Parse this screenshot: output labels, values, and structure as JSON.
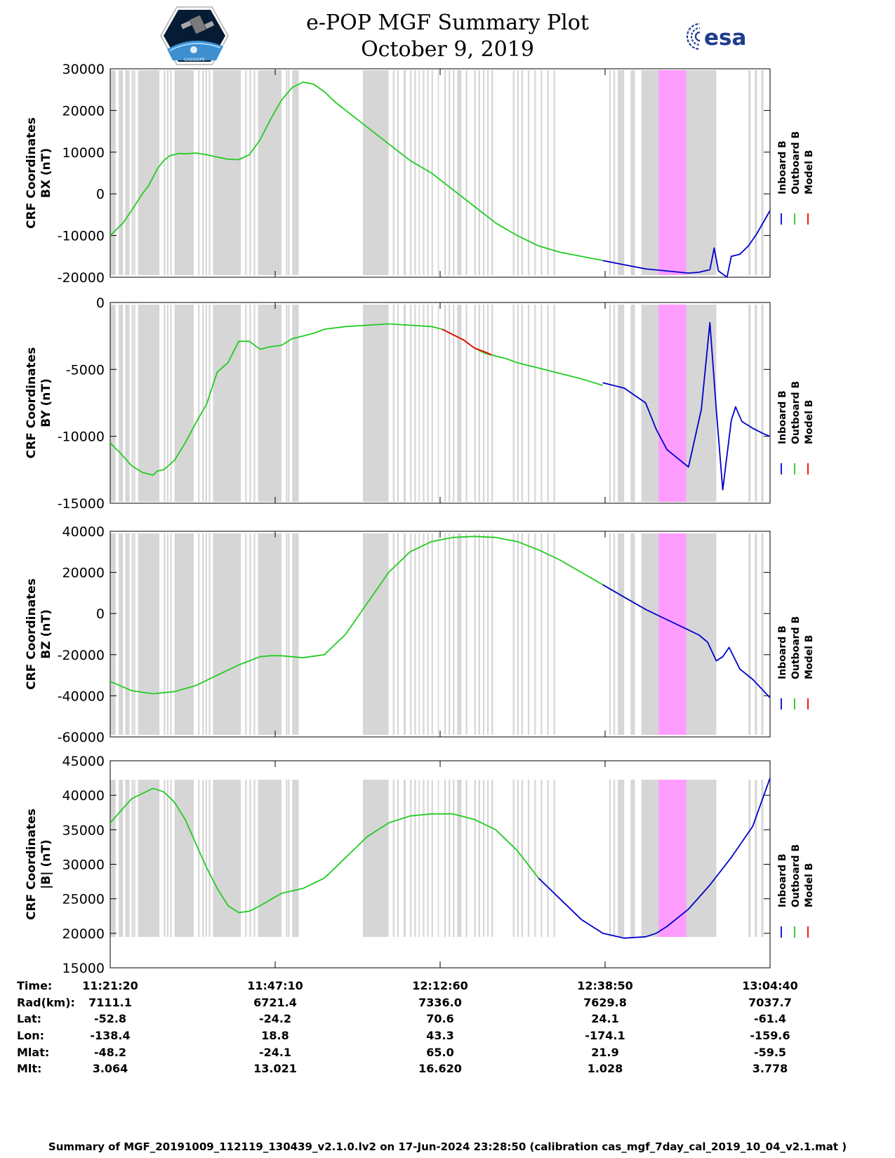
{
  "header": {
    "title": "e-POP MGF Summary Plot",
    "date": "October 9, 2019",
    "esa_text": "esa",
    "cassiope_text": "CASSIOPE"
  },
  "colors": {
    "inboard": "#0000cc",
    "outboard": "#22cc22",
    "model": "#ee0000",
    "shade_gray": "#d6d6d6",
    "shade_magenta": "#ff9cff",
    "esa_blue": "#1f3c8c"
  },
  "chart_data": [
    {
      "type": "line",
      "id": "bx",
      "ylabel": [
        "CRF Coordinates",
        "BX (nT)"
      ],
      "ylim": [
        -20000,
        30000
      ],
      "yticks": [
        -20000,
        -10000,
        0,
        10000,
        20000,
        30000
      ],
      "xlim": [
        0,
        3081
      ],
      "legend": [
        "Inboard B",
        "Outboard B",
        "Model B"
      ],
      "series": [
        {
          "name": "Outboard B",
          "color": "outboard",
          "x": [
            0,
            60,
            100,
            150,
            180,
            200,
            220,
            250,
            280,
            300,
            320,
            350,
            400,
            450,
            500,
            550,
            600,
            650,
            700,
            750,
            800,
            850,
            900,
            950,
            1000,
            1050,
            1100,
            1200,
            1300,
            1400,
            1500,
            1600,
            1700,
            1800,
            1900,
            2000,
            2100,
            2200,
            2300
          ],
          "y": [
            -10000,
            -7000,
            -4000,
            0,
            2000,
            4000,
            6000,
            8000,
            9200,
            9400,
            9700,
            9600,
            9800,
            9400,
            8800,
            8300,
            8200,
            9400,
            13000,
            18000,
            22500,
            25500,
            26800,
            26300,
            24500,
            22000,
            20000,
            16000,
            12000,
            8000,
            5000,
            1000,
            -3000,
            -7000,
            -10000,
            -12500,
            -14000,
            -15000,
            -16000
          ]
        },
        {
          "name": "Inboard B",
          "color": "inboard",
          "x": [
            2300,
            2400,
            2500,
            2600,
            2700,
            2750,
            2800,
            2820,
            2840,
            2880,
            2900,
            2940,
            2980,
            3020,
            3081
          ],
          "y": [
            -16000,
            -17000,
            -18000,
            -18500,
            -19000,
            -18800,
            -18200,
            -13000,
            -18500,
            -20000,
            -15000,
            -14500,
            -12500,
            -9500,
            -4000
          ]
        }
      ]
    },
    {
      "type": "line",
      "id": "by",
      "ylabel": [
        "CRF Coordinates",
        "BY (nT)"
      ],
      "ylim": [
        -15000,
        0
      ],
      "yticks": [
        -15000,
        -10000,
        -5000,
        0
      ],
      "xlim": [
        0,
        3081
      ],
      "legend": [
        "Inboard B",
        "Outboard B",
        "Model B"
      ],
      "series": [
        {
          "name": "Outboard B",
          "color": "outboard",
          "x": [
            0,
            50,
            100,
            150,
            200,
            220,
            250,
            300,
            350,
            400,
            450,
            500,
            550,
            600,
            650,
            700,
            750,
            800,
            850,
            900,
            950,
            1000,
            1100,
            1200,
            1300,
            1400,
            1500,
            1550,
            1600,
            1650,
            1700,
            1750,
            1800,
            1850,
            1900,
            2000,
            2100,
            2200,
            2300
          ],
          "y": [
            -10500,
            -11300,
            -12200,
            -12700,
            -12900,
            -12600,
            -12500,
            -11800,
            -10500,
            -9000,
            -7600,
            -5200,
            -4500,
            -2900,
            -2900,
            -3500,
            -3300,
            -3200,
            -2700,
            -2500,
            -2300,
            -2000,
            -1800,
            -1700,
            -1600,
            -1700,
            -1800,
            -2000,
            -2400,
            -2800,
            -3400,
            -3800,
            -4000,
            -4200,
            -4500,
            -4900,
            -5300,
            -5700,
            -6200
          ]
        },
        {
          "name": "Model B",
          "color": "model",
          "x": [
            1550,
            1600,
            1650,
            1700,
            1750,
            1780
          ],
          "y": [
            -2000,
            -2400,
            -2800,
            -3400,
            -3700,
            -3900
          ]
        },
        {
          "name": "Inboard B",
          "color": "inboard",
          "x": [
            2300,
            2400,
            2500,
            2550,
            2600,
            2700,
            2760,
            2800,
            2830,
            2860,
            2900,
            2920,
            2950,
            2980,
            3000,
            3050,
            3081
          ],
          "y": [
            -6000,
            -6400,
            -7500,
            -9500,
            -11000,
            -12300,
            -8000,
            -1500,
            -8000,
            -14000,
            -8800,
            -7800,
            -8900,
            -9200,
            -9400,
            -9800,
            -10000
          ]
        }
      ]
    },
    {
      "type": "line",
      "id": "bz",
      "ylabel": [
        "CRF Coordinates",
        "BZ (nT)"
      ],
      "ylim": [
        -60000,
        40000
      ],
      "yticks": [
        -60000,
        -40000,
        -20000,
        0,
        20000,
        40000
      ],
      "xlim": [
        0,
        3081
      ],
      "legend": [
        "Inboard B",
        "Outboard B",
        "Model B"
      ],
      "series": [
        {
          "name": "Outboard B",
          "color": "outboard",
          "x": [
            0,
            100,
            200,
            300,
            400,
            500,
            600,
            700,
            750,
            800,
            900,
            1000,
            1100,
            1200,
            1300,
            1400,
            1500,
            1600,
            1700,
            1800,
            1900,
            2000,
            2100,
            2200,
            2300
          ],
          "y": [
            -33000,
            -37500,
            -39000,
            -38000,
            -35000,
            -30000,
            -25000,
            -21000,
            -20500,
            -20500,
            -21500,
            -20000,
            -10000,
            5000,
            20000,
            30000,
            35000,
            37000,
            37500,
            37000,
            35000,
            31000,
            26000,
            20000,
            14000
          ]
        },
        {
          "name": "Inboard B",
          "color": "inboard",
          "x": [
            2300,
            2400,
            2500,
            2600,
            2700,
            2750,
            2790,
            2830,
            2860,
            2890,
            2940,
            3000,
            3081
          ],
          "y": [
            14000,
            8000,
            2000,
            -3000,
            -8000,
            -10500,
            -14000,
            -23000,
            -21000,
            -16500,
            -27000,
            -32000,
            -41000
          ]
        }
      ]
    },
    {
      "type": "line",
      "id": "bmag",
      "ylabel": [
        "CRF Coordinates",
        "|B| (nT)"
      ],
      "ylim": [
        15000,
        45000
      ],
      "yticks": [
        15000,
        20000,
        25000,
        30000,
        35000,
        40000,
        45000
      ],
      "xlim": [
        0,
        3081
      ],
      "legend": [
        "Inboard B",
        "Outboard B",
        "Model B"
      ],
      "series": [
        {
          "name": "Outboard B",
          "color": "outboard",
          "x": [
            0,
            100,
            200,
            250,
            300,
            350,
            400,
            450,
            500,
            550,
            600,
            650,
            700,
            800,
            900,
            1000,
            1100,
            1200,
            1300,
            1400,
            1500,
            1600,
            1700,
            1800,
            1900,
            2000
          ],
          "y": [
            36000,
            39500,
            41000,
            40500,
            39000,
            36500,
            33000,
            29500,
            26500,
            24000,
            23000,
            23200,
            24000,
            25800,
            26500,
            28000,
            31000,
            34000,
            36000,
            37000,
            37300,
            37300,
            36500,
            35000,
            32000,
            28000
          ]
        },
        {
          "name": "Inboard B",
          "color": "inboard",
          "x": [
            2000,
            2100,
            2200,
            2300,
            2400,
            2500,
            2550,
            2600,
            2700,
            2800,
            2900,
            3000,
            3081
          ],
          "y": [
            28000,
            25000,
            22000,
            20000,
            19300,
            19500,
            20000,
            21000,
            23500,
            27000,
            31000,
            35500,
            42500
          ]
        }
      ]
    }
  ],
  "shading": {
    "gray_bands": [
      [
        0,
        25
      ],
      [
        40,
        60
      ],
      [
        70,
        90
      ],
      [
        130,
        230
      ],
      [
        300,
        390
      ],
      [
        480,
        610
      ],
      [
        690,
        800
      ],
      [
        850,
        880
      ],
      [
        1180,
        1300
      ],
      [
        1370,
        1380
      ],
      [
        1440,
        1445
      ],
      [
        1530,
        1535
      ],
      [
        1620,
        1640
      ],
      [
        2370,
        2400
      ],
      [
        2430,
        2450
      ],
      [
        2480,
        2560
      ],
      [
        2680,
        2830
      ],
      [
        2980,
        2990
      ],
      [
        3010,
        3020
      ],
      [
        3040,
        3050
      ]
    ],
    "gray_ticks": [
      100,
      110,
      250,
      265,
      280,
      410,
      430,
      445,
      460,
      630,
      650,
      670,
      820,
      830,
      1320,
      1340,
      1400,
      1420,
      1460,
      1480,
      1500,
      1560,
      1580,
      1600,
      1660,
      1700,
      1720,
      1740,
      1760,
      1780,
      1880,
      1900,
      1920,
      1950,
      1980,
      2010,
      2040,
      2070,
      2330,
      2350
    ],
    "magenta_band": [
      2560,
      2690
    ]
  },
  "info_table": {
    "row_labels": [
      "Time:",
      "Rad(km):",
      "Lat:",
      "Lon:",
      "Mlat:",
      "Mlt:"
    ],
    "columns": [
      [
        "11:21:20",
        "7111.1",
        "-52.8",
        "-138.4",
        "-48.2",
        "3.064"
      ],
      [
        "11:47:10",
        "6721.4",
        "-24.2",
        "18.8",
        "-24.1",
        "13.021"
      ],
      [
        "12:12:60",
        "7336.0",
        "70.6",
        "43.3",
        "65.0",
        "16.620"
      ],
      [
        "12:38:50",
        "7629.8",
        "24.1",
        "-174.1",
        "21.9",
        "1.028"
      ],
      [
        "13:04:40",
        "7037.7",
        "-61.4",
        "-159.6",
        "-59.5",
        "3.778"
      ]
    ]
  },
  "footer": "Summary of MGF_20191009_112119_130439_v2.1.0.lv2 on 17-Jun-2024 23:28:50 (calibration cas_mgf_7day_cal_2019_10_04_v2.1.mat )"
}
